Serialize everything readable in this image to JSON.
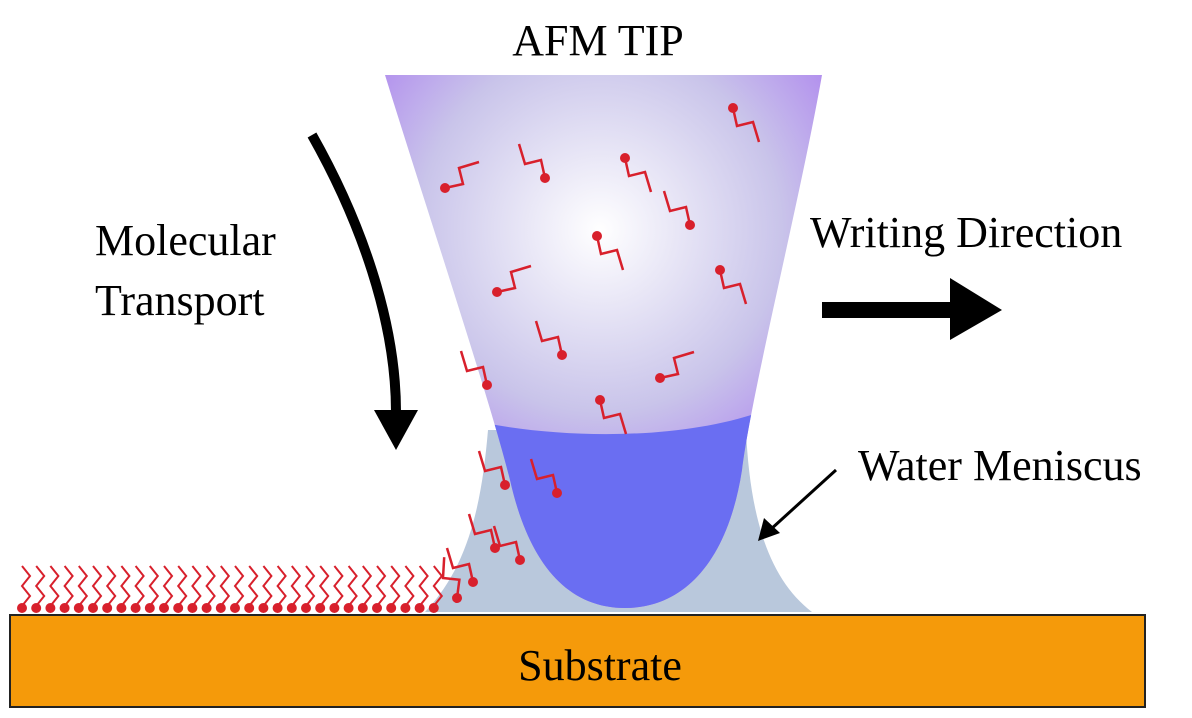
{
  "labels": {
    "tip": "AFM TIP",
    "transport_line1": "Molecular",
    "transport_line2": "Transport",
    "direction": "Writing Direction",
    "meniscus": "Water Meniscus",
    "substrate": "Substrate"
  }
}
